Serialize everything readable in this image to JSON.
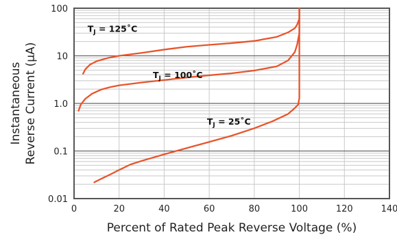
{
  "chart_data": {
    "type": "line",
    "title": "",
    "xlabel": "Percent of Rated Peak Reverse Voltage (%)",
    "ylabel_lines": [
      "Instantaneous",
      "Reverse Current (µA)"
    ],
    "xlim": [
      0,
      140
    ],
    "ylim": [
      0.01,
      100
    ],
    "yscale": "log",
    "x_ticks": [
      0,
      20,
      40,
      60,
      80,
      100,
      120,
      140
    ],
    "y_ticks": [
      0.01,
      0.1,
      1.0,
      10,
      100
    ],
    "y_tick_labels": [
      "0.01",
      "0.1",
      "1.0",
      "10",
      "100"
    ],
    "grid": true,
    "line_color": "#e8542a",
    "series": [
      {
        "name": "TJ = 125˚C",
        "label_main": "T",
        "label_sub": "J",
        "label_rest": " = 125˚C",
        "label_at": [
          6,
          32
        ],
        "x": [
          4,
          5,
          7,
          10,
          15,
          20,
          30,
          40,
          50,
          60,
          70,
          80,
          90,
          95,
          98,
          99,
          100,
          100
        ],
        "y": [
          4.2,
          5.2,
          6.5,
          7.7,
          9.0,
          10.0,
          11.5,
          13.5,
          15.5,
          17.0,
          18.5,
          20.5,
          25.0,
          31.0,
          38.0,
          45.0,
          60.0,
          100.0
        ]
      },
      {
        "name": "TJ = 100˚C",
        "label_main": "T",
        "label_sub": "J",
        "label_rest": " = 100˚C",
        "label_at": [
          35,
          3.4
        ],
        "x": [
          2,
          3,
          5,
          8,
          12,
          16,
          20,
          30,
          40,
          50,
          60,
          70,
          80,
          90,
          95,
          98,
          99,
          100,
          100
        ],
        "y": [
          0.7,
          0.95,
          1.25,
          1.6,
          1.95,
          2.2,
          2.4,
          2.75,
          3.1,
          3.5,
          3.9,
          4.3,
          4.9,
          6.0,
          8.0,
          12.0,
          17.0,
          30.0,
          100.0
        ]
      },
      {
        "name": "TJ = 25˚C",
        "label_main": "T",
        "label_sub": "J",
        "label_rest": " = 25˚C",
        "label_at": [
          59,
          0.36
        ],
        "x": [
          9,
          12,
          16,
          20,
          25,
          30,
          40,
          50,
          60,
          70,
          80,
          88,
          95,
          98,
          99.5,
          100,
          100
        ],
        "y": [
          0.022,
          0.026,
          0.032,
          0.04,
          0.052,
          0.062,
          0.085,
          0.115,
          0.155,
          0.21,
          0.3,
          0.42,
          0.6,
          0.8,
          0.95,
          1.3,
          100.0
        ]
      }
    ]
  }
}
